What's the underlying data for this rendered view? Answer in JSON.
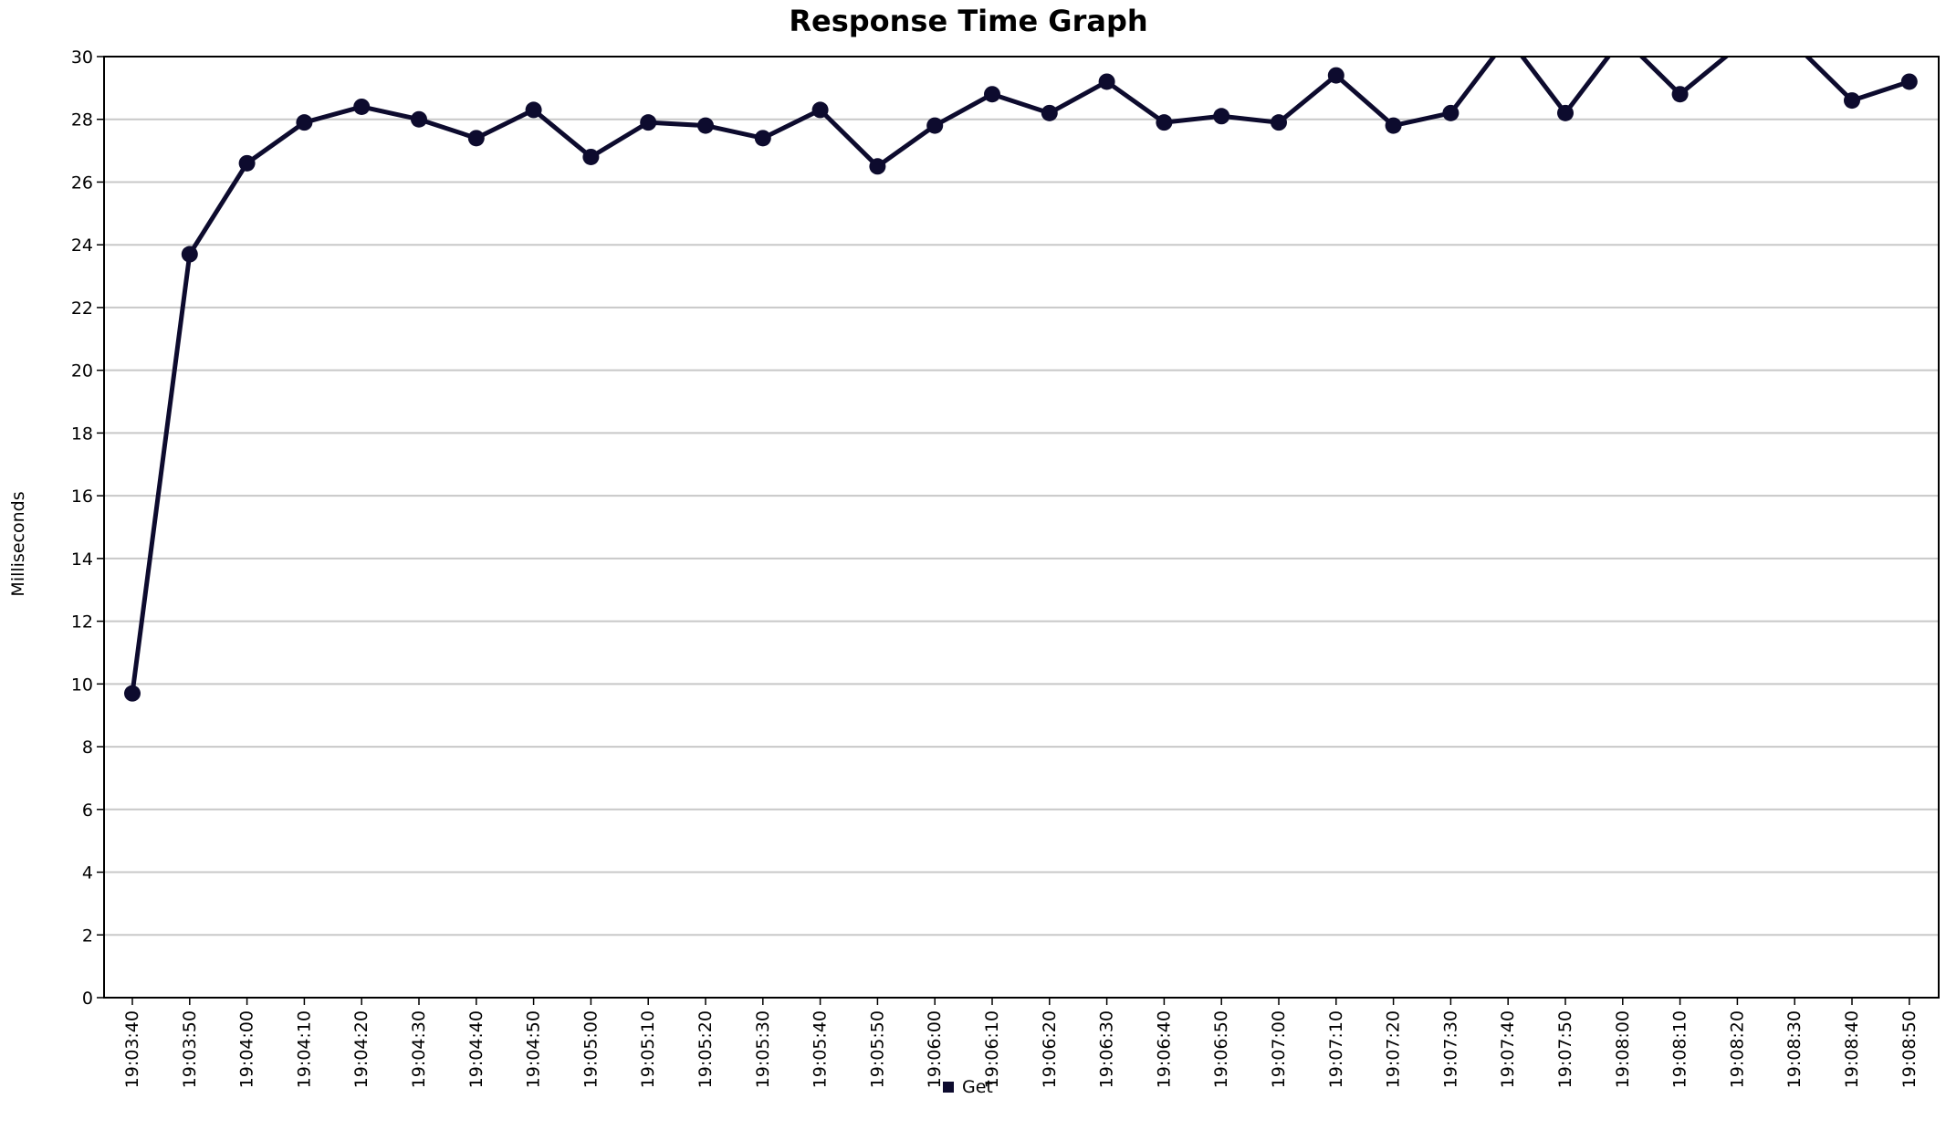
{
  "chart_data": {
    "type": "line",
    "title": "Response Time Graph",
    "xlabel": "",
    "ylabel": "Milliseconds",
    "ylim": [
      0,
      30
    ],
    "y_ticks": [
      0,
      2,
      4,
      6,
      8,
      10,
      12,
      14,
      16,
      18,
      20,
      22,
      24,
      26,
      28,
      30
    ],
    "grid": true,
    "legend_position": "bottom-center",
    "categories": [
      "19:03:40",
      "19:03:50",
      "19:04:00",
      "19:04:10",
      "19:04:20",
      "19:04:30",
      "19:04:40",
      "19:04:50",
      "19:05:00",
      "19:05:10",
      "19:05:20",
      "19:05:30",
      "19:05:40",
      "19:05:50",
      "19:06:00",
      "19:06:10",
      "19:06:20",
      "19:06:30",
      "19:06:40",
      "19:06:50",
      "19:07:00",
      "19:07:10",
      "19:07:20",
      "19:07:30",
      "19:07:40",
      "19:07:50",
      "19:08:00",
      "19:08:10",
      "19:08:20",
      "19:08:30",
      "19:08:40",
      "19:08:50"
    ],
    "series": [
      {
        "name": "Get",
        "color": "#0d0b2e",
        "values": [
          9.7,
          23.7,
          26.6,
          27.9,
          28.4,
          28.0,
          27.4,
          28.3,
          26.8,
          27.9,
          27.8,
          27.4,
          28.3,
          26.5,
          27.8,
          28.8,
          28.2,
          29.2,
          27.9,
          28.1,
          27.9,
          29.4,
          27.8,
          28.2,
          30.6,
          28.2,
          30.6,
          28.8,
          30.3,
          30.4,
          28.6,
          29.2
        ]
      }
    ]
  }
}
